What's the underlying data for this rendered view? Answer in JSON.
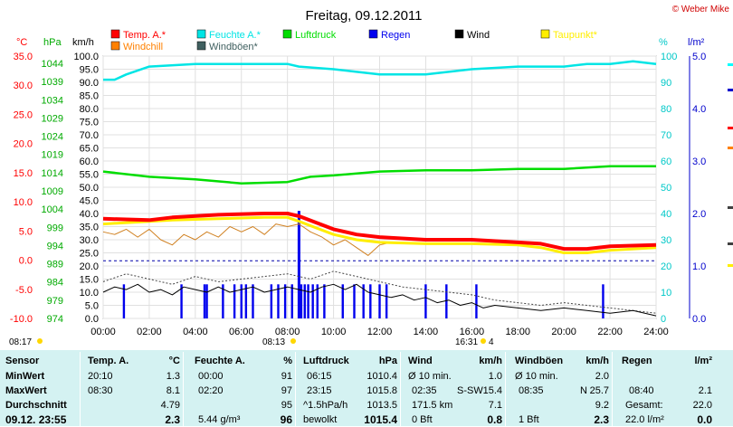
{
  "title": "Freitag, 09.12.2011",
  "credit": "© Weber Mike",
  "units": {
    "temp": "°C",
    "hpa": "hPa",
    "kmh": "km/h",
    "pct": "%",
    "rain": "l/m²"
  },
  "legend": [
    {
      "label": "Temp. A.*",
      "color": "#ff0000"
    },
    {
      "label": "Feuchte A.*",
      "color": "#00e5e5"
    },
    {
      "label": "Luftdruck",
      "color": "#00dd00"
    },
    {
      "label": "Regen",
      "color": "#0000ee"
    },
    {
      "label": "Wind",
      "color": "#000000"
    },
    {
      "label": "Taupunkt*",
      "color": "#ffee00"
    },
    {
      "label": "Windchill",
      "color": "#ff8000"
    },
    {
      "label": "Windböen*",
      "color": "#406060"
    }
  ],
  "colors": {
    "temp": "#ff0000",
    "humidity": "#00e5e5",
    "pressure": "#00dd00",
    "rain": "#0000ee",
    "wind": "#000000",
    "dew": "#ffee00",
    "chill": "#d08020",
    "gust": "#444444",
    "stats_bg": "#d4f2f2"
  },
  "sun": {
    "rise": "08:17",
    "noon": "08:13",
    "set": "16:31",
    "moon": "4"
  },
  "chart_data": {
    "type": "line",
    "x_range": [
      "00:00",
      "24:00"
    ],
    "x_ticks": [
      "00:00",
      "02:00",
      "04:00",
      "06:00",
      "08:00",
      "10:00",
      "12:00",
      "14:00",
      "16:00",
      "18:00",
      "20:00",
      "22:00",
      "24:00"
    ],
    "axes": {
      "temp_ticks": [
        "35.0",
        "30.0",
        "25.0",
        "20.0",
        "15.0",
        "10.0",
        "5.0",
        "0.0",
        "-5.0",
        "-10.0"
      ],
      "hpa_ticks": [
        "1044",
        "1039",
        "1034",
        "1029",
        "1024",
        "1019",
        "1014",
        "1009",
        "1004",
        "999",
        "994",
        "989",
        "984",
        "979",
        "974"
      ],
      "kmh_ticks": [
        "100.0",
        "95.0",
        "90.0",
        "85.0",
        "80.0",
        "75.0",
        "70.0",
        "65.0",
        "60.0",
        "55.0",
        "50.0",
        "45.0",
        "40.0",
        "35.0",
        "30.0",
        "25.0",
        "20.0",
        "15.0",
        "10.0",
        "5.0",
        "0.0"
      ],
      "pct_ticks": [
        "100",
        "90",
        "80",
        "70",
        "60",
        "50",
        "40",
        "30",
        "20",
        "10",
        "0"
      ],
      "rain_ticks": [
        "5.0",
        "4.0",
        "3.0",
        "2.0",
        "1.0",
        "0.0"
      ],
      "kmh_range": [
        0,
        100
      ],
      "pct_range": [
        0,
        100
      ],
      "rain_range": [
        0,
        5
      ]
    },
    "series": [
      {
        "name": "Temp. A.*",
        "axis": "kmh",
        "points": [
          [
            0,
            38
          ],
          [
            2,
            37.5
          ],
          [
            3,
            38.5
          ],
          [
            5,
            39.5
          ],
          [
            7,
            40
          ],
          [
            8,
            40
          ],
          [
            8.5,
            39
          ],
          [
            10,
            34
          ],
          [
            11,
            32
          ],
          [
            12,
            31
          ],
          [
            14,
            30
          ],
          [
            16,
            30
          ],
          [
            18,
            29
          ],
          [
            19,
            28.5
          ],
          [
            20,
            26.5
          ],
          [
            21,
            26.5
          ],
          [
            22,
            27.5
          ],
          [
            24,
            28
          ]
        ]
      },
      {
        "name": "Taupunkt*",
        "axis": "kmh",
        "points": [
          [
            0,
            36
          ],
          [
            2,
            37
          ],
          [
            3,
            37.5
          ],
          [
            5,
            38
          ],
          [
            7,
            38.5
          ],
          [
            8,
            38.5
          ],
          [
            8.5,
            37
          ],
          [
            10,
            32
          ],
          [
            11,
            30
          ],
          [
            12,
            29
          ],
          [
            14,
            28.5
          ],
          [
            16,
            28.5
          ],
          [
            18,
            28
          ],
          [
            19,
            27
          ],
          [
            20,
            25
          ],
          [
            21,
            25
          ],
          [
            22,
            26
          ],
          [
            24,
            27
          ]
        ]
      },
      {
        "name": "Feuchte A.*",
        "axis": "pct",
        "points": [
          [
            0,
            91
          ],
          [
            0.5,
            91
          ],
          [
            1,
            93
          ],
          [
            2,
            96
          ],
          [
            4,
            97
          ],
          [
            8,
            97
          ],
          [
            8.5,
            96
          ],
          [
            10,
            95
          ],
          [
            11,
            94
          ],
          [
            12,
            93
          ],
          [
            14,
            93
          ],
          [
            15,
            94
          ],
          [
            16,
            95
          ],
          [
            18,
            96
          ],
          [
            20,
            96
          ],
          [
            21,
            97
          ],
          [
            22,
            97
          ],
          [
            23,
            98
          ],
          [
            24,
            97
          ]
        ]
      },
      {
        "name": "Luftdruck",
        "axis": "kmh",
        "points": [
          [
            0,
            56
          ],
          [
            2,
            54
          ],
          [
            4,
            53
          ],
          [
            6,
            51.5
          ],
          [
            8,
            52
          ],
          [
            9,
            54
          ],
          [
            10,
            54.5
          ],
          [
            12,
            56
          ],
          [
            14,
            56.5
          ],
          [
            16,
            56.5
          ],
          [
            18,
            57
          ],
          [
            20,
            57
          ],
          [
            22,
            58
          ],
          [
            24,
            58
          ]
        ]
      },
      {
        "name": "Windchill",
        "axis": "kmh",
        "points": [
          [
            0,
            33
          ],
          [
            0.5,
            32
          ],
          [
            1,
            34
          ],
          [
            1.5,
            31
          ],
          [
            2,
            34
          ],
          [
            2.5,
            30
          ],
          [
            3,
            28
          ],
          [
            3.5,
            32
          ],
          [
            4,
            30
          ],
          [
            4.5,
            33
          ],
          [
            5,
            31
          ],
          [
            5.5,
            35
          ],
          [
            6,
            33
          ],
          [
            6.5,
            35
          ],
          [
            7,
            32
          ],
          [
            7.5,
            36
          ],
          [
            8,
            35
          ],
          [
            8.5,
            36
          ],
          [
            9,
            33
          ],
          [
            9.5,
            31
          ],
          [
            10,
            28
          ],
          [
            10.5,
            30
          ],
          [
            11,
            27
          ],
          [
            11.5,
            24
          ],
          [
            12,
            28
          ],
          [
            12.5,
            29
          ]
        ]
      },
      {
        "name": "Wind",
        "axis": "kmh",
        "points": [
          [
            0,
            10
          ],
          [
            0.5,
            12
          ],
          [
            1,
            11
          ],
          [
            1.5,
            13
          ],
          [
            2,
            10
          ],
          [
            2.5,
            11
          ],
          [
            3,
            9
          ],
          [
            3.5,
            12
          ],
          [
            4,
            11
          ],
          [
            4.5,
            10
          ],
          [
            5,
            12
          ],
          [
            5.5,
            10
          ],
          [
            6,
            11
          ],
          [
            6.5,
            12
          ],
          [
            7,
            10
          ],
          [
            7.5,
            11
          ],
          [
            8,
            12
          ],
          [
            8.5,
            11
          ],
          [
            9,
            10
          ],
          [
            9.5,
            12
          ],
          [
            10,
            13
          ],
          [
            10.5,
            11
          ],
          [
            11,
            13
          ],
          [
            11.5,
            10
          ],
          [
            12,
            9
          ],
          [
            12.5,
            8
          ],
          [
            13,
            9
          ],
          [
            13.5,
            7
          ],
          [
            14,
            8
          ],
          [
            14.5,
            6
          ],
          [
            15,
            7
          ],
          [
            15.5,
            5
          ],
          [
            16,
            6
          ],
          [
            16.5,
            4
          ],
          [
            17,
            5
          ],
          [
            18,
            4
          ],
          [
            19,
            3
          ],
          [
            20,
            4
          ],
          [
            21,
            3
          ],
          [
            22,
            2
          ],
          [
            23,
            3
          ],
          [
            24,
            1
          ]
        ]
      },
      {
        "name": "Windböen*",
        "axis": "kmh",
        "points": [
          [
            0,
            14
          ],
          [
            1,
            17
          ],
          [
            2,
            15
          ],
          [
            3,
            13
          ],
          [
            4,
            16
          ],
          [
            5,
            14
          ],
          [
            6,
            15
          ],
          [
            7,
            16
          ],
          [
            8,
            17
          ],
          [
            9,
            15
          ],
          [
            10,
            18
          ],
          [
            11,
            16
          ],
          [
            12,
            14
          ],
          [
            13,
            12
          ],
          [
            14,
            11
          ],
          [
            15,
            10
          ],
          [
            16,
            9
          ],
          [
            17,
            7
          ],
          [
            18,
            6
          ],
          [
            19,
            5
          ],
          [
            20,
            6
          ],
          [
            21,
            5
          ],
          [
            22,
            4
          ],
          [
            23,
            3
          ],
          [
            24,
            2
          ]
        ]
      }
    ],
    "threshold_pct": 22,
    "rain_bars": [
      0.9,
      3.4,
      4.4,
      4.5,
      5.2,
      5.7,
      6.0,
      6.2,
      6.5,
      7.3,
      7.6,
      7.9,
      8.2,
      8.5,
      8.6,
      8.75,
      8.9,
      9.1,
      9.3,
      9.6,
      10.4,
      10.9,
      11.3,
      11.6,
      12.0,
      12.3,
      14.0,
      14.9,
      16.2,
      21.7
    ],
    "rain_bar_heights": [
      0.65,
      0.65,
      0.65,
      0.65,
      0.65,
      0.65,
      0.65,
      0.65,
      0.65,
      0.65,
      0.65,
      0.65,
      0.65,
      0.65,
      0.65,
      0.65,
      0.65,
      0.65,
      0.65,
      0.65,
      0.65,
      0.65,
      0.65,
      0.65,
      0.65,
      0.65,
      0.65,
      0.65,
      0.65,
      0.65
    ],
    "rain_spike": {
      "x": 8.5,
      "h": 2.05
    }
  },
  "stats": {
    "sensor": {
      "head": "Sensor",
      "rows": [
        "MinWert",
        "MaxWert",
        "Durchschnitt",
        "09.12. 23:55"
      ]
    },
    "temp": {
      "head": "Temp. A.",
      "unit": "°C",
      "min_t": "20:10",
      "min_v": "1.3",
      "max_t": "08:30",
      "max_v": "8.1",
      "avg": "4.79",
      "cur": "2.3"
    },
    "hum": {
      "head": "Feuchte A.",
      "unit": "%",
      "min_t": "00:00",
      "min_v": "91",
      "max_t": "02:20",
      "max_v": "97",
      "avg": "95",
      "cur_note": "5.44 g/m³",
      "cur": "96"
    },
    "press": {
      "head": "Luftdruck",
      "unit": "hPa",
      "min_t": "06:15",
      "min_v": "1010.4",
      "max_t": "23:15",
      "max_v": "1015.8",
      "avg_note": "^1.5hPa/h",
      "avg": "1013.5",
      "cur_note": "bewolkt",
      "cur": "1015.4"
    },
    "wind": {
      "head": "Wind",
      "unit": "km/h",
      "min_t": "Ø 10 min.",
      "min_v": "1.0",
      "max_t": "02:35",
      "max_dir": "S-SW",
      "max_v": "15.4",
      "avg_note": "171.5 km",
      "avg": "7.1",
      "cur_note": "0 Bft",
      "cur": "0.8"
    },
    "gust": {
      "head": "Windböen",
      "unit": "km/h",
      "min_t": "Ø 10 min.",
      "min_v": "2.0",
      "max_t": "08:35",
      "max_dir": "N",
      "max_v": "25.7",
      "avg": "9.2",
      "cur_note": "1 Bft",
      "cur": "2.3"
    },
    "rain": {
      "head": "Regen",
      "unit": "l/m²",
      "max_t": "08:40",
      "max_v": "2.1",
      "avg_note": "Gesamt:",
      "avg": "22.0",
      "cur_note": "22.0 l/m²",
      "cur": "0.0"
    }
  }
}
